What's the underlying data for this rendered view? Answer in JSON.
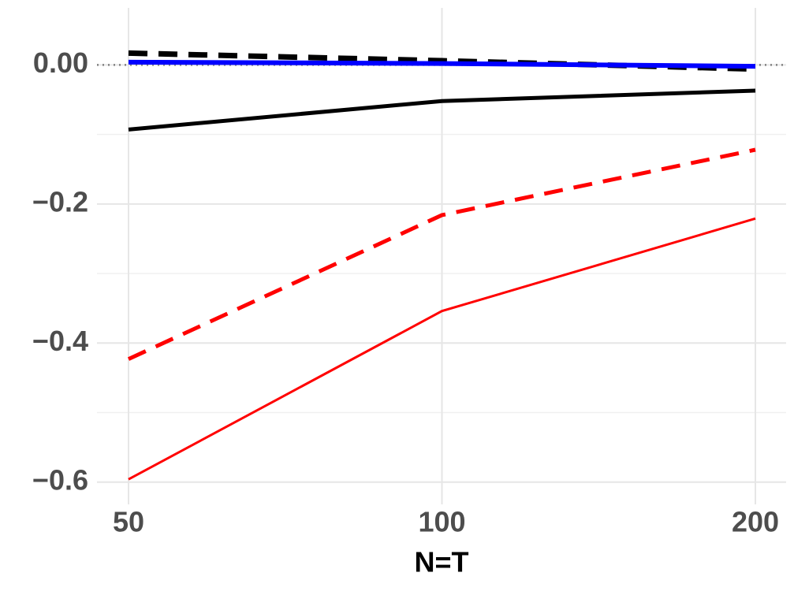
{
  "chart_data": {
    "type": "line",
    "x_label": "N=T",
    "categories": [
      "50",
      "100",
      "200"
    ],
    "series": [
      {
        "color": "#000000",
        "dash": "dashed",
        "width": 7,
        "values": [
          0.017,
          0.006,
          -0.006
        ]
      },
      {
        "color": "#0000ff",
        "dash": "solid",
        "width": 6,
        "values": [
          0.004,
          0.002,
          -0.002
        ]
      },
      {
        "color": "#000000",
        "dash": "solid",
        "width": 5,
        "values": [
          -0.093,
          -0.052,
          -0.037
        ]
      },
      {
        "color": "#ff0000",
        "dash": "dashed",
        "width": 5,
        "values": [
          -0.423,
          -0.216,
          -0.122
        ]
      },
      {
        "color": "#ff0000",
        "dash": "solid",
        "width": 3,
        "values": [
          -0.596,
          -0.354,
          -0.221
        ]
      }
    ],
    "ylim": [
      -0.632,
      0.082
    ],
    "yticks": [
      {
        "value": 0,
        "label": "0.00"
      },
      {
        "value": -0.2,
        "label": "−0.2"
      },
      {
        "value": -0.4,
        "label": "−0.4"
      },
      {
        "value": -0.6,
        "label": "−0.6"
      }
    ],
    "minor_yticks": [
      -0.1,
      -0.3,
      -0.5
    ],
    "reference_line": 0,
    "grid": true
  }
}
